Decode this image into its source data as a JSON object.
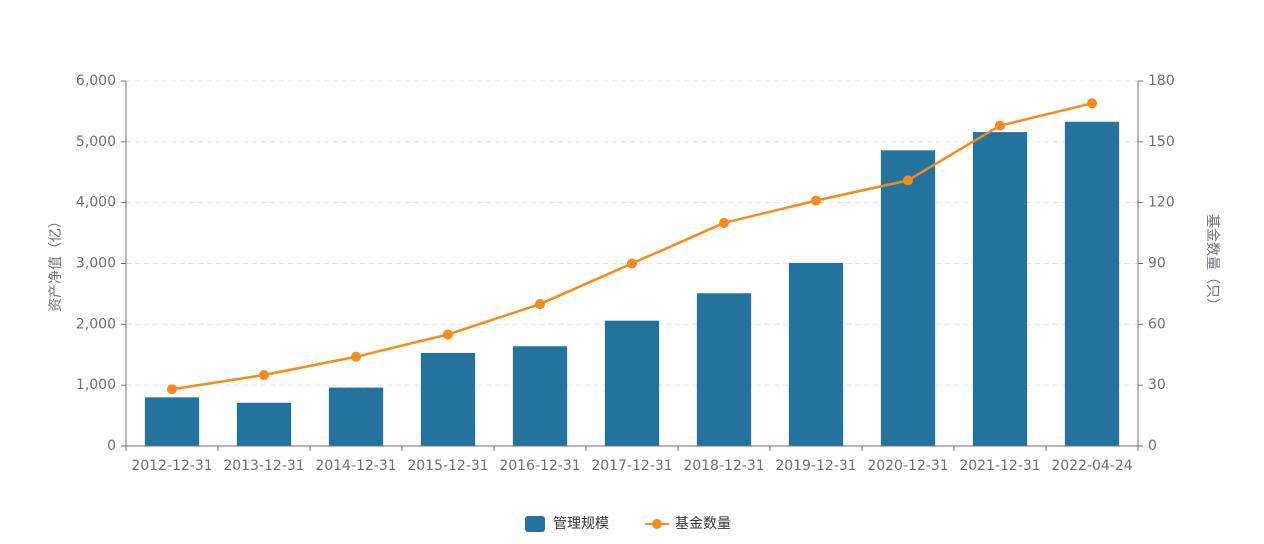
{
  "chart_data": {
    "type": "bar",
    "categories": [
      "2012-12-31",
      "2013-12-31",
      "2014-12-31",
      "2015-12-31",
      "2016-12-31",
      "2017-12-31",
      "2018-12-31",
      "2019-12-31",
      "2020-12-31",
      "2021-12-31",
      "2022-04-24"
    ],
    "series": [
      {
        "name": "管理规模",
        "type": "bar",
        "axis": "left",
        "color": "#24739f",
        "values": [
          800,
          710,
          960,
          1530,
          1640,
          2060,
          2510,
          3010,
          4860,
          5160,
          5330
        ]
      },
      {
        "name": "基金数量",
        "type": "line",
        "axis": "right",
        "color": "#f58a1f",
        "values": [
          28,
          35,
          44,
          55,
          70,
          90,
          110,
          121,
          131,
          158,
          169
        ]
      }
    ],
    "y_left": {
      "label": "资产净值（亿）",
      "ylim": [
        0,
        6000
      ],
      "ticks": [
        "0",
        "1,000",
        "2,000",
        "3,000",
        "4,000",
        "5,000",
        "6,000"
      ]
    },
    "y_right": {
      "label": "基金数量（只）",
      "ylim": [
        0,
        180
      ],
      "ticks": [
        "0",
        "30",
        "60",
        "90",
        "120",
        "150",
        "180"
      ]
    },
    "grid": true,
    "legend": "bottom-center"
  }
}
